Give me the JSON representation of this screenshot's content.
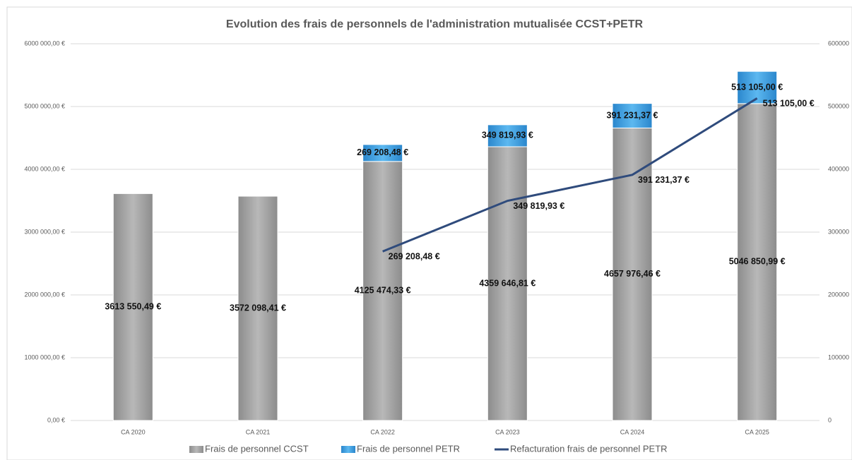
{
  "chart_data": {
    "type": "bar",
    "title": "Evolution des frais de personnels de l'administration mutualisée CCST+PETR",
    "categories": [
      "CA 2020",
      "CA 2021",
      "CA 2022",
      "CA 2023",
      "CA 2024",
      "CA 2025"
    ],
    "stacked": true,
    "series": [
      {
        "name": "Frais de personnel CCST",
        "color": "#a6a6a6",
        "type": "bar",
        "values": [
          3613550.49,
          3572098.41,
          4125474.33,
          4359646.81,
          4657976.46,
          5046850.99
        ],
        "value_labels": [
          "3613 550,49 €",
          "3572 098,41 €",
          "4125 474,33 €",
          "4359 646,81 €",
          "4657 976,46 €",
          "5046 850,99 €"
        ]
      },
      {
        "name": "Frais de personnel PETR",
        "color": "#3d9de0",
        "type": "bar",
        "values": [
          null,
          null,
          269208.48,
          349819.93,
          391231.37,
          513105.0
        ],
        "value_labels": [
          null,
          null,
          "269 208,48 €",
          "349 819,93 €",
          "391 231,37 €",
          "513 105,00 €"
        ]
      },
      {
        "name": "Refacturation frais de personnel PETR",
        "color": "#2f4b7c",
        "type": "line",
        "axis": "y2",
        "values": [
          null,
          null,
          269208.48,
          349819.93,
          391231.37,
          513105.0
        ],
        "value_labels": [
          null,
          null,
          "269 208,48 €",
          "349 819,93 €",
          "391 231,37 €",
          "513 105,00 €"
        ]
      }
    ],
    "ylim": [
      0,
      6000000
    ],
    "yticks": [
      {
        "value": 0,
        "label": "0,00 €"
      },
      {
        "value": 1000000,
        "label": "1000 000,00 €"
      },
      {
        "value": 2000000,
        "label": "2000 000,00 €"
      },
      {
        "value": 3000000,
        "label": "3000 000,00 €"
      },
      {
        "value": 4000000,
        "label": "4000 000,00 €"
      },
      {
        "value": 5000000,
        "label": "5000 000,00 €"
      },
      {
        "value": 6000000,
        "label": "6000 000,00 €"
      }
    ],
    "y2lim": [
      0,
      600000
    ],
    "y2ticks": [
      0,
      100000,
      200000,
      300000,
      400000,
      500000,
      600000
    ],
    "grid": true,
    "legend": "bottom"
  }
}
